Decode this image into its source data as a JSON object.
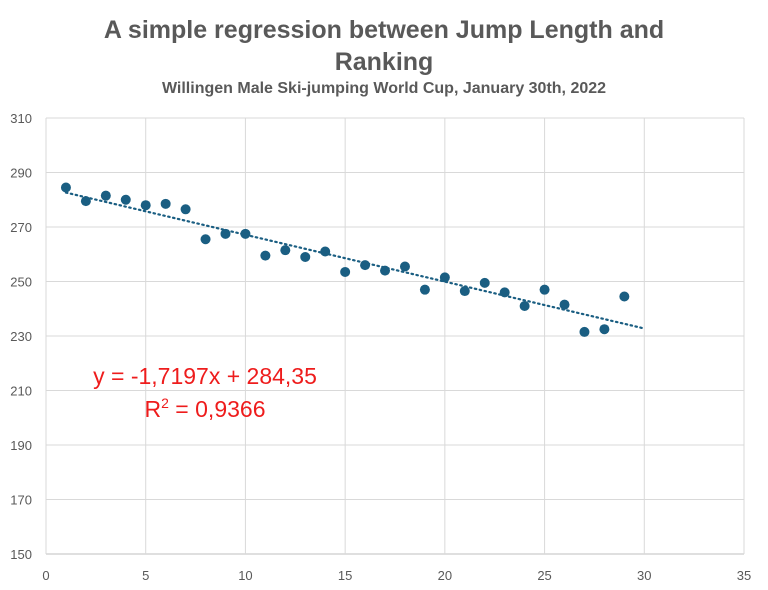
{
  "chart_data": {
    "type": "scatter",
    "title": "A simple regression between Jump Length and Ranking",
    "title_line1": "A simple regression between Jump Length and",
    "title_line2": "Ranking",
    "subtitle": "Willingen Male Ski-jumping World Cup, January 30th, 2022",
    "xlabel": "",
    "ylabel": "",
    "xlim": [
      0,
      35
    ],
    "ylim": [
      150,
      310
    ],
    "xticks": [
      0,
      5,
      10,
      15,
      20,
      25,
      30,
      35
    ],
    "yticks": [
      150,
      170,
      190,
      210,
      230,
      250,
      270,
      290,
      310
    ],
    "grid": true,
    "legend": "none",
    "marker_color": "#1a5e82",
    "series": [
      {
        "name": "Jump Length",
        "x": [
          1,
          2,
          3,
          4,
          5,
          6,
          7,
          8,
          9,
          10,
          11,
          12,
          13,
          14,
          15,
          16,
          17,
          18,
          19,
          20,
          21,
          22,
          23,
          24,
          25,
          26,
          27,
          28,
          29
        ],
        "y": [
          284.5,
          279.5,
          281.5,
          280,
          278,
          278.5,
          276.5,
          265.5,
          267.5,
          267.5,
          259.5,
          261.5,
          259,
          261,
          253.5,
          256,
          254,
          255.5,
          247,
          251.5,
          246.5,
          249.5,
          246,
          241,
          247,
          241.5,
          231.5,
          232.5,
          244.5
        ]
      }
    ],
    "trendline": {
      "type": "linear",
      "slope": -1.7197,
      "intercept": 284.35,
      "x_range": [
        1,
        30
      ],
      "color": "#1a5e82",
      "style": "dotted"
    },
    "annotations": [
      {
        "text": "y = -1,7197x + 284,35",
        "color": "#ee1c1c"
      },
      {
        "text_main": "R",
        "text_sup": "2",
        "text_rest": " = 0,9366",
        "color": "#ee1c1c"
      }
    ]
  }
}
